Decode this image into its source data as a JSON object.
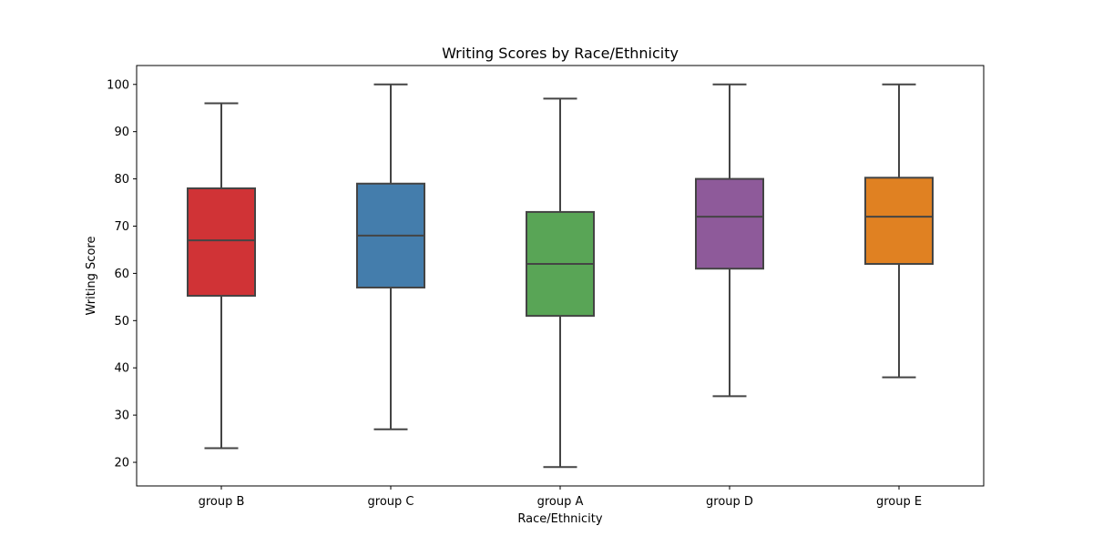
{
  "chart_data": {
    "type": "box",
    "title": "Writing Scores by Race/Ethnicity",
    "xlabel": "Race/Ethnicity",
    "ylabel": "Writing Score",
    "ylim": [
      15,
      104
    ],
    "yticks": [
      20,
      30,
      40,
      50,
      60,
      70,
      80,
      90,
      100
    ],
    "categories": [
      "group B",
      "group C",
      "group A",
      "group D",
      "group E"
    ],
    "boxes": [
      {
        "category": "group B",
        "whisker_low": 23,
        "q1": 55.25,
        "median": 67,
        "q3": 78,
        "whisker_high": 96,
        "color": "#d03336"
      },
      {
        "category": "group C",
        "whisker_low": 27,
        "q1": 57,
        "median": 68,
        "q3": 79,
        "whisker_high": 100,
        "color": "#447dac"
      },
      {
        "category": "group A",
        "whisker_low": 19,
        "q1": 51,
        "median": 62,
        "q3": 73,
        "whisker_high": 97,
        "color": "#59a556"
      },
      {
        "category": "group D",
        "whisker_low": 34,
        "q1": 61,
        "median": 72,
        "q3": 80,
        "whisker_high": 100,
        "color": "#8e5a9a"
      },
      {
        "category": "group E",
        "whisker_low": 38,
        "q1": 62,
        "median": 72,
        "q3": 80.25,
        "whisker_high": 100,
        "color": "#e08122"
      }
    ],
    "grid": false,
    "legend": "none"
  }
}
